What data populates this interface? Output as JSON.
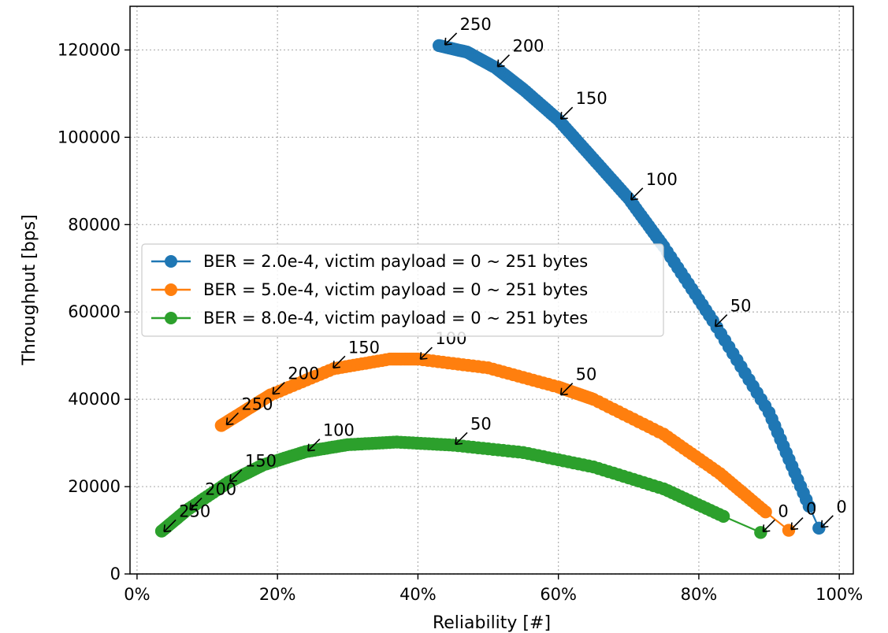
{
  "chart_data": {
    "type": "scatter",
    "xlabel": "Reliability [#]",
    "ylabel": "Throughput [bps]",
    "xlim": [
      -0.01,
      1.02
    ],
    "ylim": [
      0,
      130000
    ],
    "xticks": [
      0,
      0.2,
      0.4,
      0.6,
      0.8,
      1.0
    ],
    "xtick_labels": [
      "0%",
      "20%",
      "40%",
      "60%",
      "80%",
      "100%"
    ],
    "yticks": [
      0,
      20000,
      40000,
      60000,
      80000,
      100000,
      120000
    ],
    "ytick_labels": [
      "0",
      "20000",
      "40000",
      "60000",
      "80000",
      "100000",
      "120000"
    ],
    "grid": true,
    "legend_position": "center-left",
    "series": [
      {
        "name": "BER = 2.0e-4, victim payload = 0 ~ 251 bytes",
        "color": "#1f77b4",
        "first_point": [
          0.971,
          10500
        ],
        "curve": [
          [
            0.957,
            15500
          ],
          [
            0.9,
            37000
          ],
          [
            0.82,
            58000
          ],
          [
            0.75,
            75000
          ],
          [
            0.7,
            86000
          ],
          [
            0.65,
            95000
          ],
          [
            0.6,
            104000
          ],
          [
            0.55,
            111000
          ],
          [
            0.51,
            116000
          ],
          [
            0.47,
            119500
          ],
          [
            0.43,
            121000
          ]
        ],
        "annotations": [
          {
            "text": "250",
            "x": 0.435,
            "y": 121000
          },
          {
            "text": "200",
            "x": 0.51,
            "y": 116000
          },
          {
            "text": "150",
            "x": 0.6,
            "y": 104000
          },
          {
            "text": "100",
            "x": 0.7,
            "y": 85500
          },
          {
            "text": "50",
            "x": 0.82,
            "y": 56500
          },
          {
            "text": "0",
            "x": 0.971,
            "y": 10500
          }
        ]
      },
      {
        "name": "BER = 5.0e-4, victim payload = 0 ~ 251 bytes",
        "color": "#ff7f0e",
        "first_point": [
          0.928,
          10000
        ],
        "curve": [
          [
            0.895,
            14200
          ],
          [
            0.83,
            23000
          ],
          [
            0.75,
            32000
          ],
          [
            0.65,
            40000
          ],
          [
            0.6,
            42800
          ],
          [
            0.5,
            47200
          ],
          [
            0.4,
            49200
          ],
          [
            0.36,
            49200
          ],
          [
            0.28,
            47000
          ],
          [
            0.19,
            41000
          ],
          [
            0.15,
            37000
          ],
          [
            0.12,
            34000
          ]
        ],
        "annotations": [
          {
            "text": "250",
            "x": 0.124,
            "y": 34000
          },
          {
            "text": "200",
            "x": 0.19,
            "y": 41000
          },
          {
            "text": "150",
            "x": 0.276,
            "y": 47000
          },
          {
            "text": "100",
            "x": 0.4,
            "y": 49000
          },
          {
            "text": "50",
            "x": 0.6,
            "y": 40800
          },
          {
            "text": "0",
            "x": 0.928,
            "y": 10000
          }
        ]
      },
      {
        "name": "BER = 8.0e-4, victim payload = 0 ~ 251 bytes",
        "color": "#2ca02c",
        "first_point": [
          0.888,
          9500
        ],
        "curve": [
          [
            0.835,
            13200
          ],
          [
            0.75,
            19500
          ],
          [
            0.65,
            24500
          ],
          [
            0.55,
            27800
          ],
          [
            0.45,
            29500
          ],
          [
            0.37,
            30200
          ],
          [
            0.3,
            29600
          ],
          [
            0.24,
            28000
          ],
          [
            0.18,
            25000
          ],
          [
            0.13,
            21000
          ],
          [
            0.07,
            14500
          ],
          [
            0.035,
            9800
          ]
        ],
        "annotations": [
          {
            "text": "250",
            "x": 0.035,
            "y": 9500
          },
          {
            "text": "200",
            "x": 0.072,
            "y": 14500
          },
          {
            "text": "150",
            "x": 0.129,
            "y": 21000
          },
          {
            "text": "100",
            "x": 0.24,
            "y": 28000
          },
          {
            "text": "50",
            "x": 0.45,
            "y": 29500
          },
          {
            "text": "0",
            "x": 0.888,
            "y": 9500
          }
        ]
      }
    ]
  }
}
